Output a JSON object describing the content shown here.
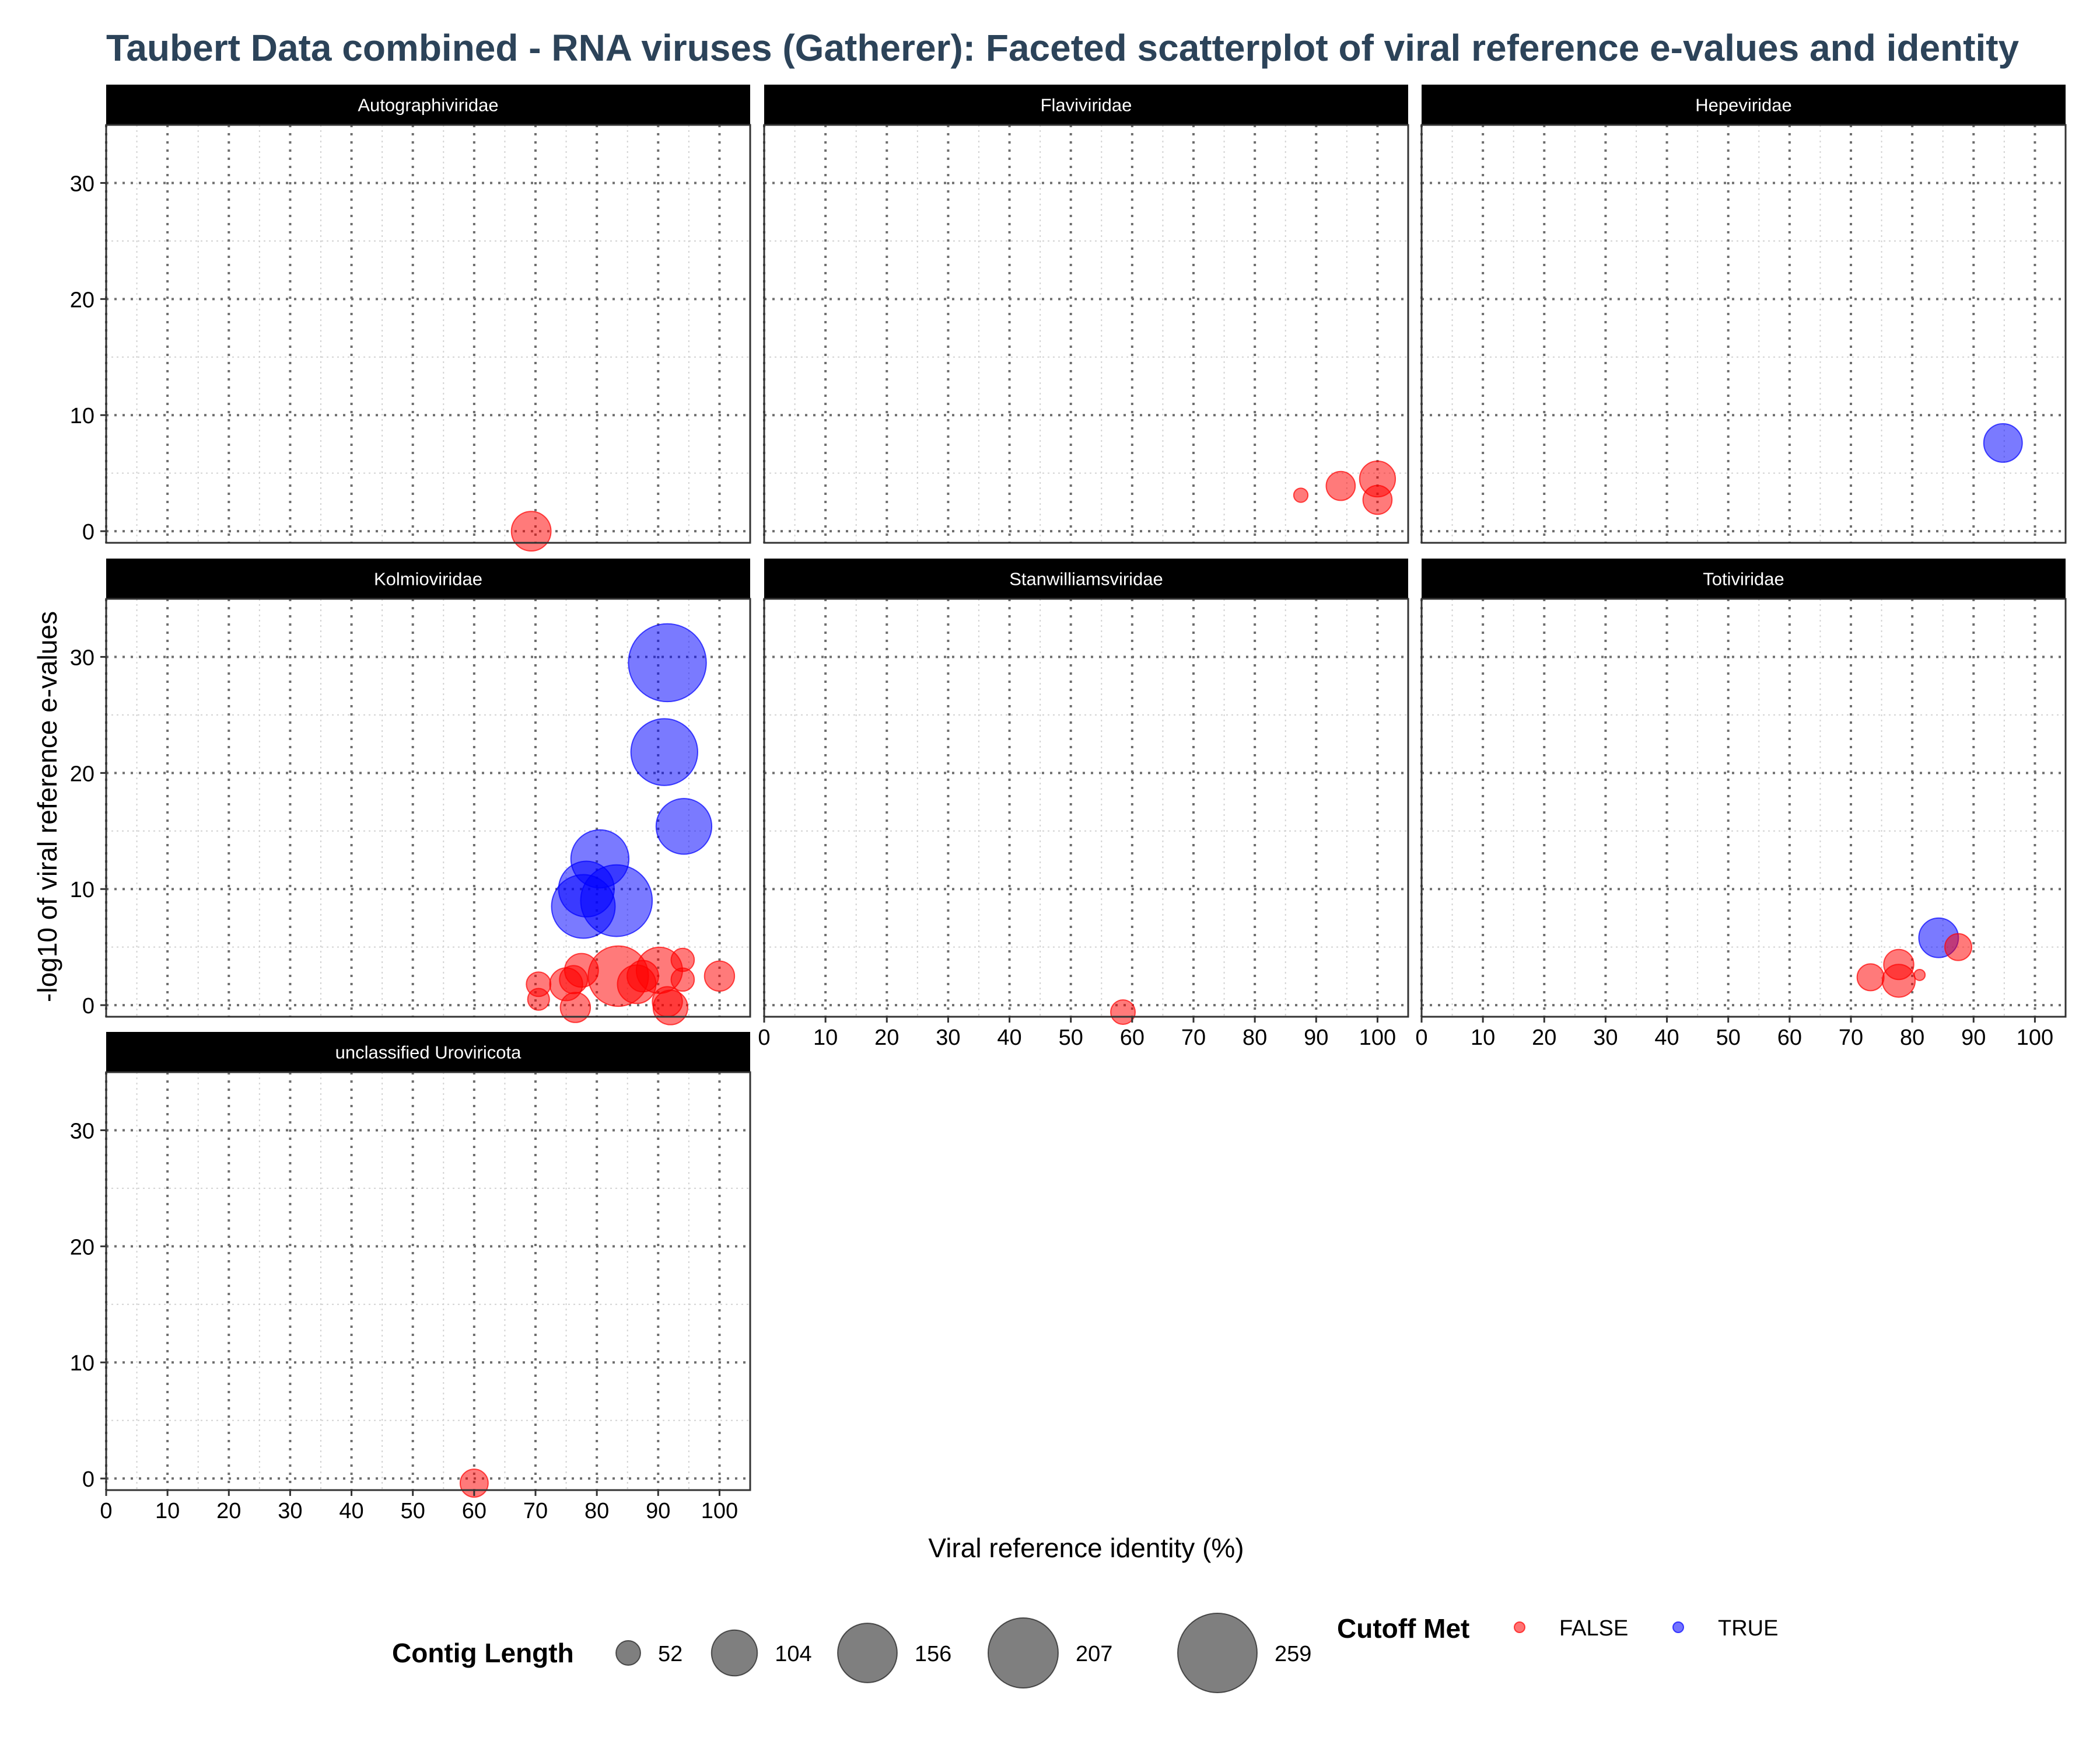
{
  "chart_data": {
    "type": "scatter",
    "title": "Taubert Data combined - RNA viruses (Gatherer): Faceted scatterplot of viral reference e-values and identity",
    "xlabel": "Viral reference identity (%)",
    "ylabel": "-log10 of viral reference e-values",
    "xlim": [
      0,
      105
    ],
    "ylim": [
      -1,
      35
    ],
    "x_ticks": [
      0,
      10,
      20,
      30,
      40,
      50,
      60,
      70,
      80,
      90,
      100
    ],
    "y_ticks": [
      0,
      10,
      20,
      30
    ],
    "grid": true,
    "colors": {
      "FALSE": "#FF0000",
      "TRUE": "#0000FF"
    },
    "size_legend": {
      "title": "Contig Length",
      "values": [
        52,
        104,
        156,
        207,
        259
      ]
    },
    "color_legend": {
      "title": "Cutoff Met",
      "entries": [
        {
          "key": "FALSE",
          "label": "FALSE",
          "color": "#FF0000"
        },
        {
          "key": "TRUE",
          "label": "TRUE",
          "color": "#0000FF"
        }
      ]
    },
    "facets": [
      {
        "name": "Autographiviridae",
        "points": [
          {
            "x": 69.3,
            "y": 0.0,
            "len": 85,
            "cutoff": "FALSE"
          }
        ]
      },
      {
        "name": "Flaviviridae",
        "points": [
          {
            "x": 87.5,
            "y": 3.1,
            "len": 40,
            "cutoff": "FALSE"
          },
          {
            "x": 94.0,
            "y": 3.9,
            "len": 60,
            "cutoff": "FALSE"
          },
          {
            "x": 100.0,
            "y": 4.5,
            "len": 75,
            "cutoff": "FALSE"
          },
          {
            "x": 100.0,
            "y": 2.7,
            "len": 60,
            "cutoff": "FALSE"
          }
        ]
      },
      {
        "name": "Hepeviridae",
        "points": [
          {
            "x": 94.8,
            "y": 7.6,
            "len": 82,
            "cutoff": "TRUE"
          }
        ]
      },
      {
        "name": "Kolmioviridae",
        "points": [
          {
            "x": 91.5,
            "y": 29.5,
            "len": 250,
            "cutoff": "TRUE"
          },
          {
            "x": 91.0,
            "y": 21.8,
            "len": 190,
            "cutoff": "TRUE"
          },
          {
            "x": 94.2,
            "y": 15.4,
            "len": 140,
            "cutoff": "TRUE"
          },
          {
            "x": 80.5,
            "y": 12.6,
            "len": 150,
            "cutoff": "TRUE"
          },
          {
            "x": 83.2,
            "y": 9.0,
            "len": 215,
            "cutoff": "TRUE"
          },
          {
            "x": 77.8,
            "y": 8.5,
            "len": 175,
            "cutoff": "TRUE"
          },
          {
            "x": 78.3,
            "y": 10.0,
            "len": 140,
            "cutoff": "TRUE"
          },
          {
            "x": 83.5,
            "y": 2.5,
            "len": 160,
            "cutoff": "FALSE"
          },
          {
            "x": 90.2,
            "y": 3.0,
            "len": 105,
            "cutoff": "FALSE"
          },
          {
            "x": 77.5,
            "y": 3.0,
            "len": 70,
            "cutoff": "FALSE"
          },
          {
            "x": 75.0,
            "y": 1.8,
            "len": 68,
            "cutoff": "FALSE"
          },
          {
            "x": 76.2,
            "y": 2.2,
            "len": 58,
            "cutoff": "FALSE"
          },
          {
            "x": 70.5,
            "y": 1.8,
            "len": 52,
            "cutoff": "FALSE"
          },
          {
            "x": 70.5,
            "y": 0.5,
            "len": 48,
            "cutoff": "FALSE"
          },
          {
            "x": 76.5,
            "y": -0.2,
            "len": 62,
            "cutoff": "FALSE"
          },
          {
            "x": 86.5,
            "y": 1.8,
            "len": 82,
            "cutoff": "FALSE"
          },
          {
            "x": 87.5,
            "y": 2.5,
            "len": 65,
            "cutoff": "FALSE"
          },
          {
            "x": 91.5,
            "y": 0.3,
            "len": 62,
            "cutoff": "FALSE"
          },
          {
            "x": 92.0,
            "y": -0.2,
            "len": 72,
            "cutoff": "FALSE"
          },
          {
            "x": 94.0,
            "y": 3.9,
            "len": 50,
            "cutoff": "FALSE"
          },
          {
            "x": 94.0,
            "y": 2.2,
            "len": 50,
            "cutoff": "FALSE"
          },
          {
            "x": 100.0,
            "y": 2.5,
            "len": 62,
            "cutoff": "FALSE"
          }
        ]
      },
      {
        "name": "Stanwilliamsviridae",
        "points": [
          {
            "x": 58.5,
            "y": -0.6,
            "len": 52,
            "cutoff": "FALSE"
          }
        ]
      },
      {
        "name": "Totiviridae",
        "points": [
          {
            "x": 84.3,
            "y": 5.8,
            "len": 85,
            "cutoff": "TRUE"
          },
          {
            "x": 73.2,
            "y": 2.4,
            "len": 56,
            "cutoff": "FALSE"
          },
          {
            "x": 77.8,
            "y": 3.5,
            "len": 62,
            "cutoff": "FALSE"
          },
          {
            "x": 77.8,
            "y": 2.1,
            "len": 68,
            "cutoff": "FALSE"
          },
          {
            "x": 81.2,
            "y": 2.6,
            "len": 38,
            "cutoff": "FALSE"
          },
          {
            "x": 87.5,
            "y": 5.0,
            "len": 56,
            "cutoff": "FALSE"
          }
        ]
      },
      {
        "name": "unclassified Uroviricota",
        "points": [
          {
            "x": 60.0,
            "y": -0.4,
            "len": 58,
            "cutoff": "FALSE"
          }
        ]
      }
    ]
  }
}
